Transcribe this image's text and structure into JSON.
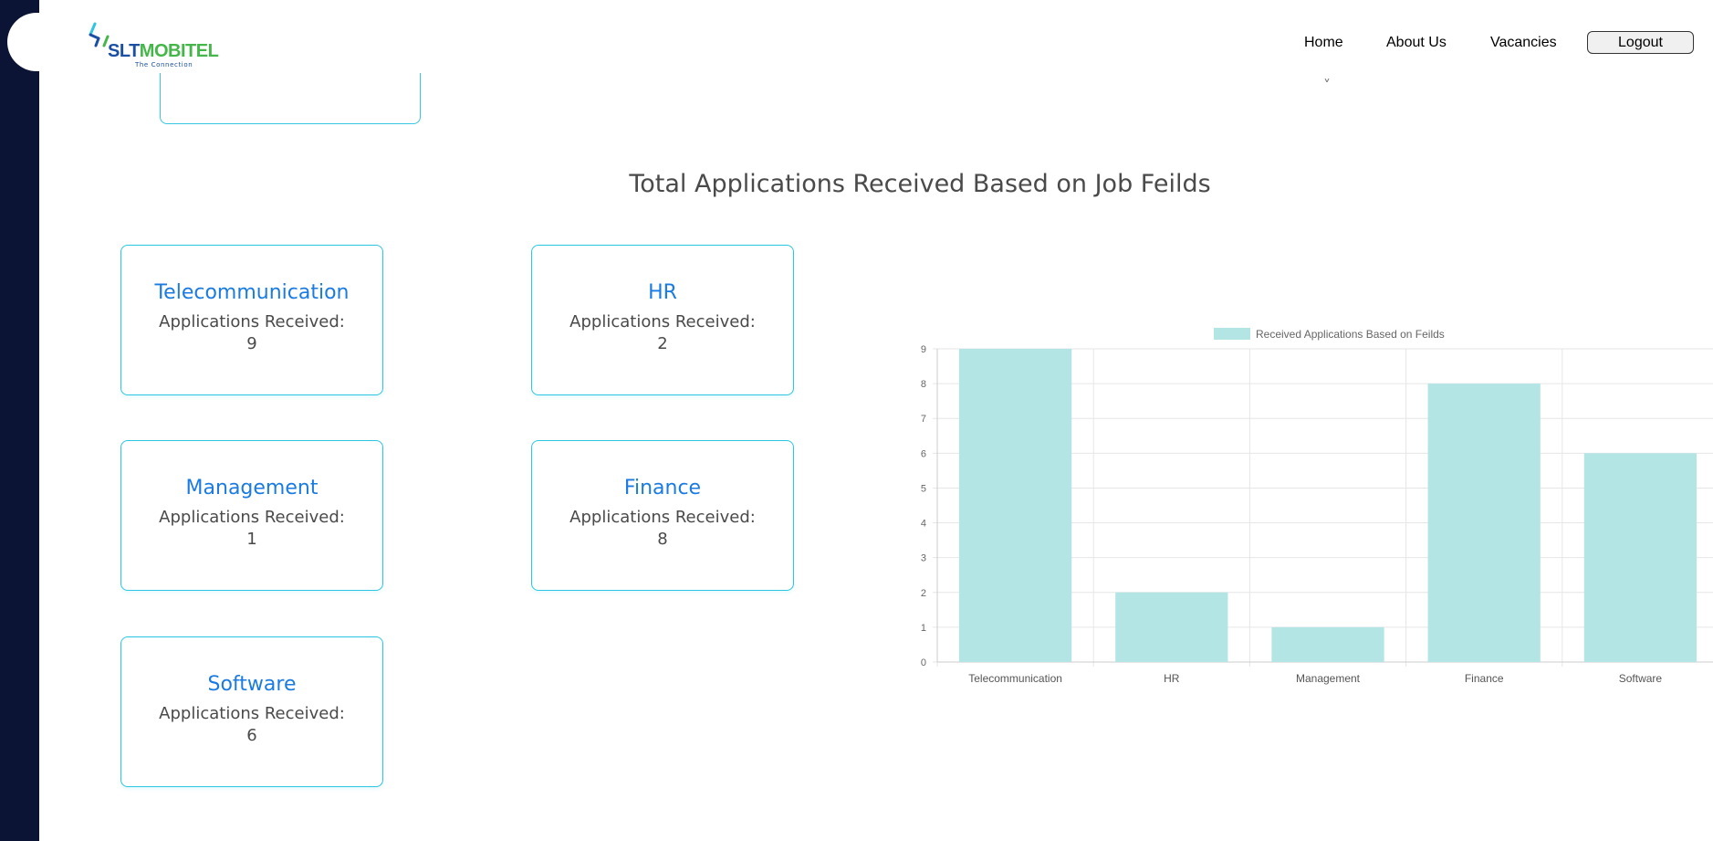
{
  "brand": {
    "logo_text_part1": "SLT",
    "logo_text_part2": "MOBITEL",
    "tagline": "The Connection",
    "colors": {
      "primary_blue": "#1b4fa3",
      "green": "#45b649",
      "accent_cyan": "#2cc6e2"
    }
  },
  "nav": {
    "home": "Home",
    "about": "About Us",
    "vacancies": "Vacancies",
    "logout": "Logout"
  },
  "main": {
    "section_title": "Total Applications Received Based on Job Feilds",
    "cards": [
      {
        "field": "Telecommunication",
        "label": "Applications Received:",
        "count": "9"
      },
      {
        "field": "HR",
        "label": "Applications Received:",
        "count": "2"
      },
      {
        "field": "Management",
        "label": "Applications Received:",
        "count": "1"
      },
      {
        "field": "Finance",
        "label": "Applications Received:",
        "count": "8"
      },
      {
        "field": "Software",
        "label": "Applications Received:",
        "count": "6"
      }
    ]
  },
  "chart_data": {
    "type": "bar",
    "categories": [
      "Telecommunication",
      "HR",
      "Management",
      "Finance",
      "Software"
    ],
    "series": [
      {
        "name": "Received Applications Based on Feilds",
        "values": [
          9,
          2,
          1,
          8,
          6
        ]
      }
    ],
    "ylim": [
      0,
      9
    ],
    "yticks": [
      0,
      1,
      2,
      3,
      4,
      5,
      6,
      7,
      8,
      9
    ],
    "grid": true,
    "legend": "top-center",
    "bar_color": "#b3e5e5",
    "bar_border_color": "#b3e5e5"
  }
}
